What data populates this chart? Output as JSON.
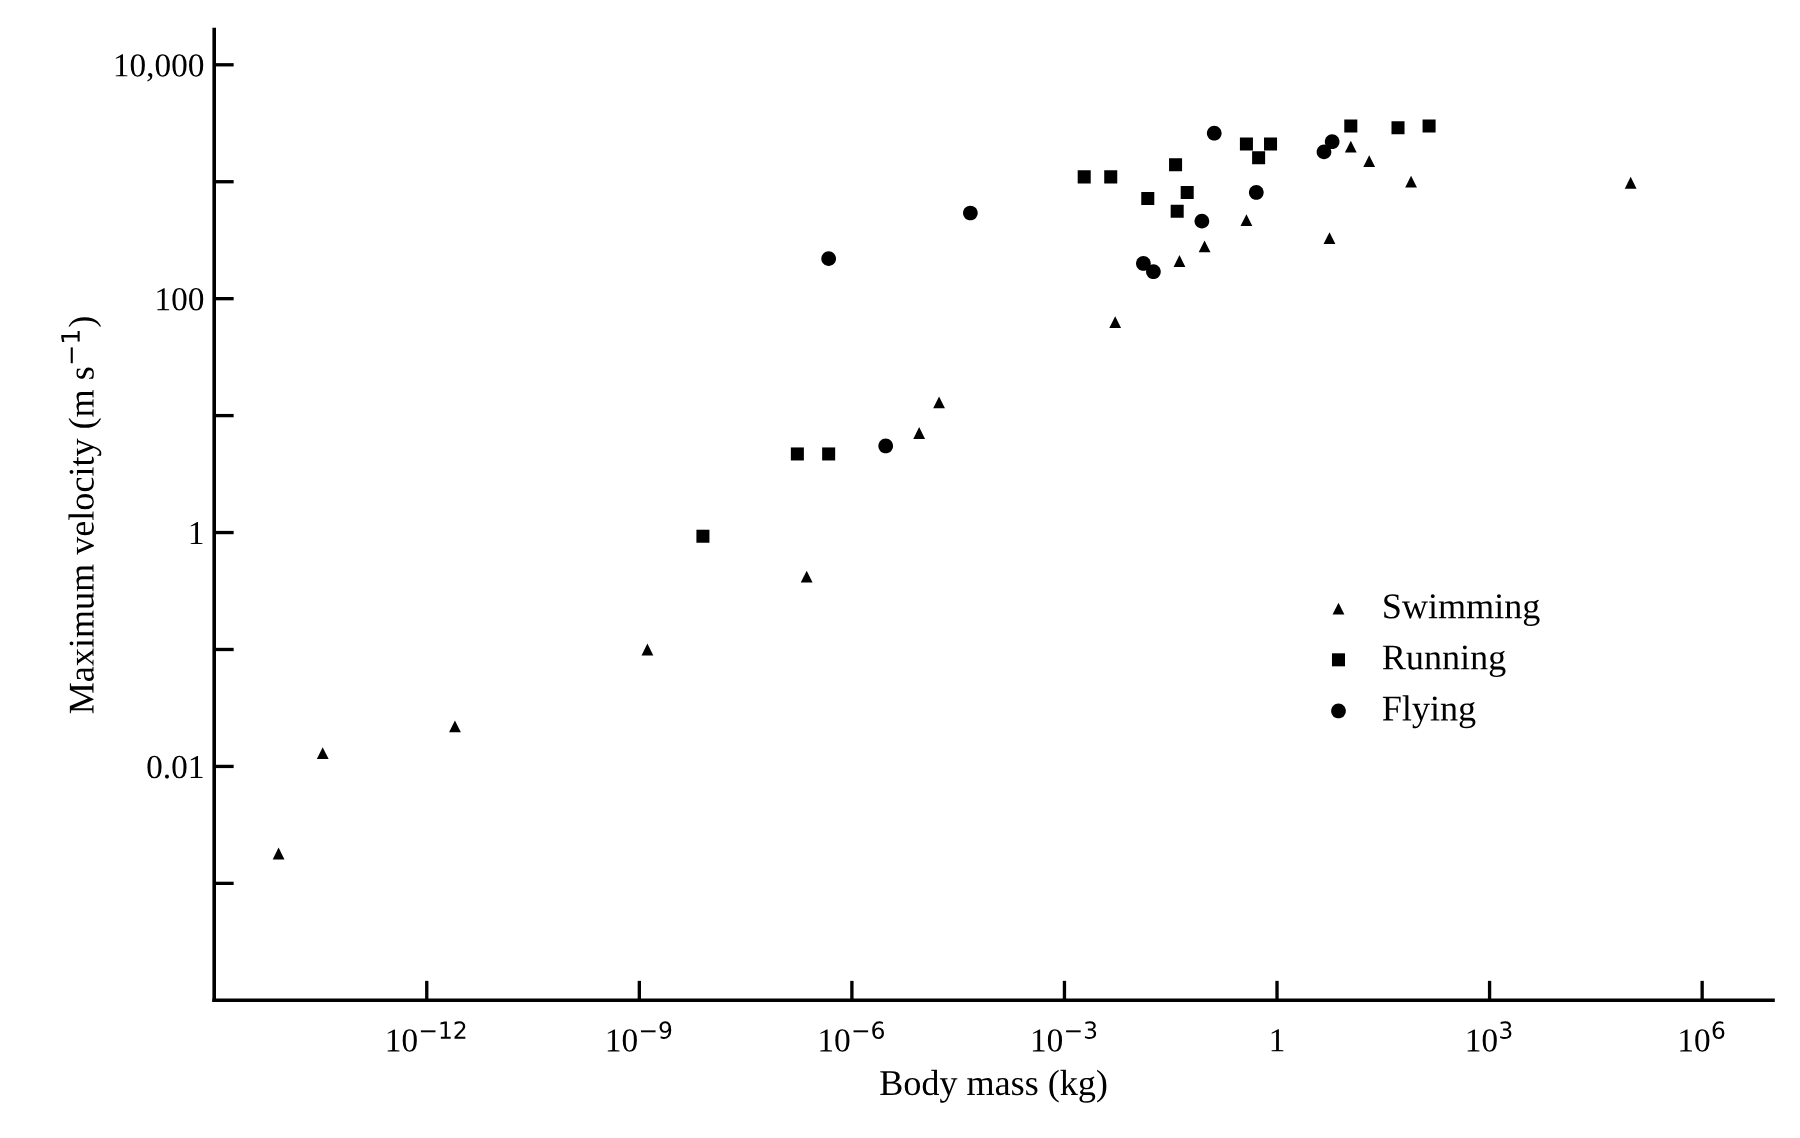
{
  "chart_data": {
    "type": "scatter",
    "xlabel": "Body mass (kg)",
    "ylabel": "Maximum velocity (m s$^{−1}$)",
    "log": "xy",
    "grid": false,
    "legend": "center right",
    "xlim": [
      1e-15,
      10000000.0
    ],
    "ylim": [
      0.0001,
      20000
    ],
    "xticks": [
      {
        "value": 1e-12,
        "label": "10$^{−12}$"
      },
      {
        "value": 1e-09,
        "label": "10$^{−9}$"
      },
      {
        "value": 1e-06,
        "label": "10$^{−6}$"
      },
      {
        "value": 0.001,
        "label": "10$^{−3}$"
      },
      1,
      {
        "value": 1000,
        "label": "10$^{3}$"
      },
      {
        "value": 1000000,
        "label": "10$^{6}$"
      }
    ],
    "yticks": [
      {
        "value": 0.001,
        "label": null
      },
      {
        "value": 0.01,
        "label": "0.01"
      },
      {
        "value": 0.1,
        "label": null
      },
      1,
      {
        "value": 10,
        "label": null
      },
      100,
      {
        "value": 1000,
        "label": null
      },
      {
        "value": 10000,
        "label": "10,000"
      }
    ],
    "series": [
      {
        "name": "Swimming",
        "color": "#000000",
        "marker": "triangle",
        "x": [
          8.1e-15,
          3.4e-14,
          2.5e-12,
          1.3e-09,
          2.3e-07,
          8.9e-06,
          1.7e-05,
          0.0052,
          0.042,
          0.095,
          0.37,
          5.5,
          11,
          20,
          78,
          98000
        ],
        "values": [
          0.0018,
          0.013,
          0.022,
          0.1,
          0.42,
          7.1,
          13,
          63,
          210,
          280,
          470,
          330,
          2000,
          1500,
          1000,
          980
        ]
      },
      {
        "name": "Running",
        "color": "#000000",
        "marker": "square",
        "x": [
          7.9e-09,
          1.7e-07,
          4.7e-07,
          0.0019,
          0.0045,
          0.015,
          0.037,
          0.054,
          0.039,
          0.37,
          0.81,
          0.55,
          11,
          51,
          140
        ],
        "values": [
          0.93,
          4.7,
          4.7,
          1100,
          1100,
          720,
          1400,
          810,
          560,
          2100,
          2100,
          1600,
          3000,
          2900,
          3000
        ]
      },
      {
        "name": "Flying",
        "color": "#000000",
        "marker": "circle",
        "x": [
          4.7e-07,
          4.7e-05,
          3e-06,
          0.013,
          0.018,
          0.087,
          0.13,
          0.51,
          4.6,
          6.0
        ],
        "values": [
          220,
          540,
          5.5,
          200,
          170,
          460,
          2600,
          810,
          1800,
          2200
        ]
      }
    ]
  }
}
